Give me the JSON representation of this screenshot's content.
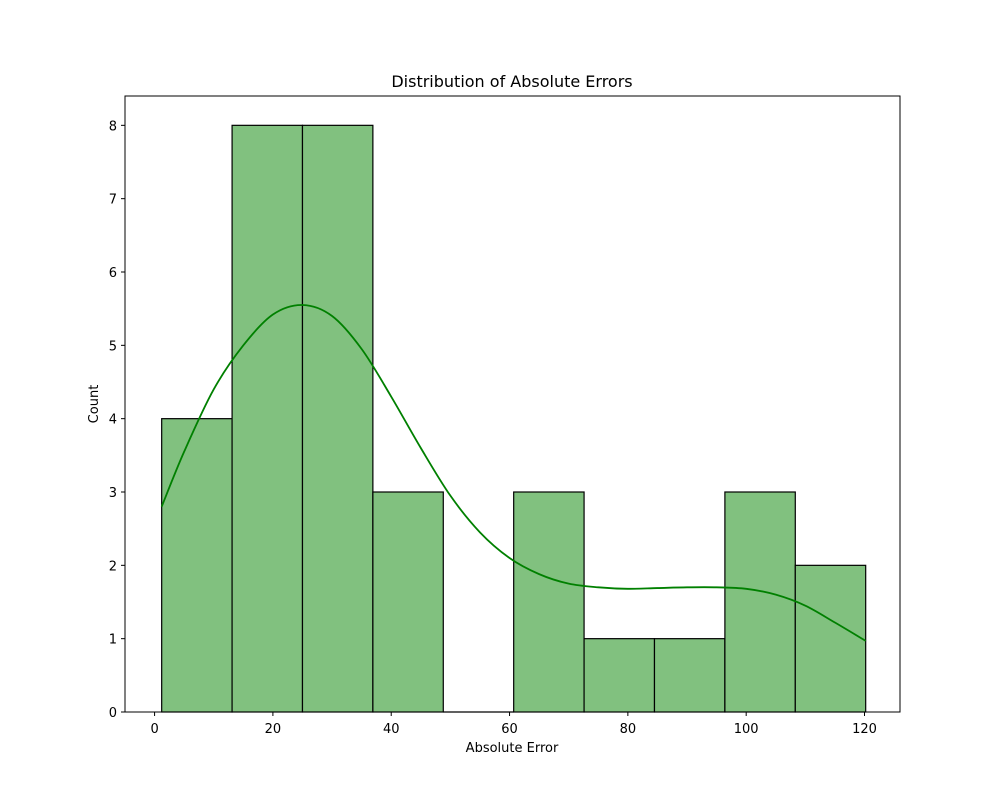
{
  "chart_data": {
    "type": "bar",
    "subtype": "histogram",
    "title": "Distribution of Absolute Errors",
    "xlabel": "Absolute Error",
    "ylabel": "Count",
    "xlim": [
      -5,
      126
    ],
    "ylim": [
      0,
      8.4
    ],
    "xticks": [
      0,
      20,
      40,
      60,
      80,
      100,
      120
    ],
    "yticks": [
      0,
      1,
      2,
      3,
      4,
      5,
      6,
      7,
      8
    ],
    "grid": false,
    "legend": "none",
    "bins": [
      {
        "x0": 1.2,
        "x1": 13.1,
        "count": 4
      },
      {
        "x0": 13.1,
        "x1": 25.0,
        "count": 8
      },
      {
        "x0": 25.0,
        "x1": 36.9,
        "count": 8
      },
      {
        "x0": 36.9,
        "x1": 48.8,
        "count": 3
      },
      {
        "x0": 48.8,
        "x1": 60.7,
        "count": 0
      },
      {
        "x0": 60.7,
        "x1": 72.6,
        "count": 3
      },
      {
        "x0": 72.6,
        "x1": 84.5,
        "count": 1
      },
      {
        "x0": 84.5,
        "x1": 96.4,
        "count": 1
      },
      {
        "x0": 96.4,
        "x1": 108.3,
        "count": 3
      },
      {
        "x0": 108.3,
        "x1": 120.2,
        "count": 2
      }
    ],
    "kde": {
      "x": [
        1.2,
        5,
        10,
        15,
        20,
        25,
        30,
        35,
        40,
        45,
        50,
        55,
        60,
        65,
        70,
        75,
        80,
        85,
        90,
        95,
        100,
        105,
        110,
        115,
        120.2
      ],
      "y": [
        2.8,
        3.55,
        4.4,
        5.0,
        5.42,
        5.55,
        5.4,
        4.95,
        4.3,
        3.6,
        2.95,
        2.45,
        2.1,
        1.88,
        1.75,
        1.7,
        1.68,
        1.69,
        1.7,
        1.7,
        1.68,
        1.6,
        1.45,
        1.22,
        0.97
      ]
    },
    "colors": {
      "bar_fill": "#81c17f",
      "bar_edge": "#000000",
      "kde_line": "#008000"
    }
  }
}
